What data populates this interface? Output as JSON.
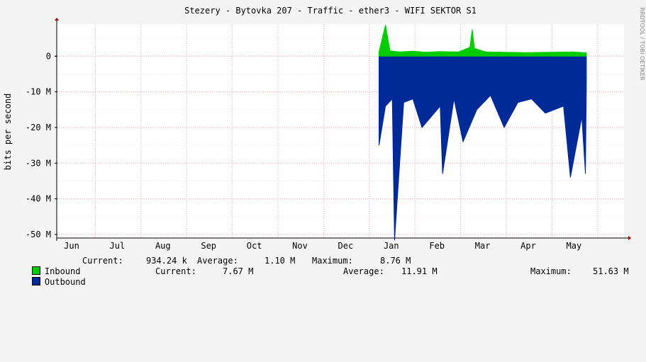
{
  "chart_data": {
    "type": "area",
    "title": "Stezery - Bytovka 207 - Traffic - ether3 - WIFI SEKTOR S1",
    "ylabel": "bits per second",
    "watermark": "RRDTOOL / TOBI OETIKER",
    "xlabel": "",
    "x_ticks": [
      "Jun",
      "Jul",
      "Aug",
      "Sep",
      "Oct",
      "Nov",
      "Dec",
      "Jan",
      "Feb",
      "Mar",
      "Apr",
      "May"
    ],
    "y_ticks": [
      {
        "value": 0,
        "label": "0"
      },
      {
        "value": -10000000,
        "label": "-10 M"
      },
      {
        "value": -20000000,
        "label": "-20 M"
      },
      {
        "value": -30000000,
        "label": "-30 M"
      },
      {
        "value": -40000000,
        "label": "-40 M"
      },
      {
        "value": -50000000,
        "label": "-50 M"
      }
    ],
    "ylim": [
      -51000000,
      9000000
    ],
    "grid": true,
    "data_starts_at_month_fraction": 7.26,
    "series": [
      {
        "name": "Inbound",
        "color": "#00cc00",
        "current": "934.24 k",
        "average": "1.10 M",
        "maximum": "8.76 M",
        "x_month": [
          7.26,
          7.4,
          7.5,
          7.7,
          8.0,
          8.3,
          8.6,
          9.0,
          9.25,
          9.3,
          9.35,
          9.6,
          10.0,
          10.5,
          11.0,
          11.5,
          11.8
        ],
        "values": [
          1200000,
          8760000,
          1500000,
          1200000,
          1400000,
          1100000,
          1300000,
          1200000,
          2500000,
          7500000,
          2200000,
          1200000,
          1100000,
          1000000,
          1100000,
          1200000,
          934240
        ]
      },
      {
        "name": "Outbound",
        "color": "#002a97",
        "current": "7.67 M",
        "average": "11.91 M",
        "maximum": "51.63 M",
        "x_month": [
          7.26,
          7.4,
          7.55,
          7.6,
          7.8,
          8.0,
          8.2,
          8.6,
          8.65,
          8.9,
          9.1,
          9.4,
          9.7,
          10.0,
          10.3,
          10.6,
          10.9,
          11.3,
          11.45,
          11.7,
          11.78,
          11.8
        ],
        "values": [
          -25000000,
          -14000000,
          -12000000,
          -51630000,
          -13000000,
          -12000000,
          -20000000,
          -14000000,
          -33000000,
          -12000000,
          -24000000,
          -15000000,
          -11000000,
          -20000000,
          -13000000,
          -12000000,
          -16000000,
          -14000000,
          -34000000,
          -17000000,
          -33000000,
          -7670000
        ]
      }
    ]
  },
  "legend": {
    "inbound_label": "Inbound",
    "outbound_label": "Outbound",
    "current_label": "Current:",
    "average_label": "Average:",
    "maximum_label": "Maximum:"
  }
}
